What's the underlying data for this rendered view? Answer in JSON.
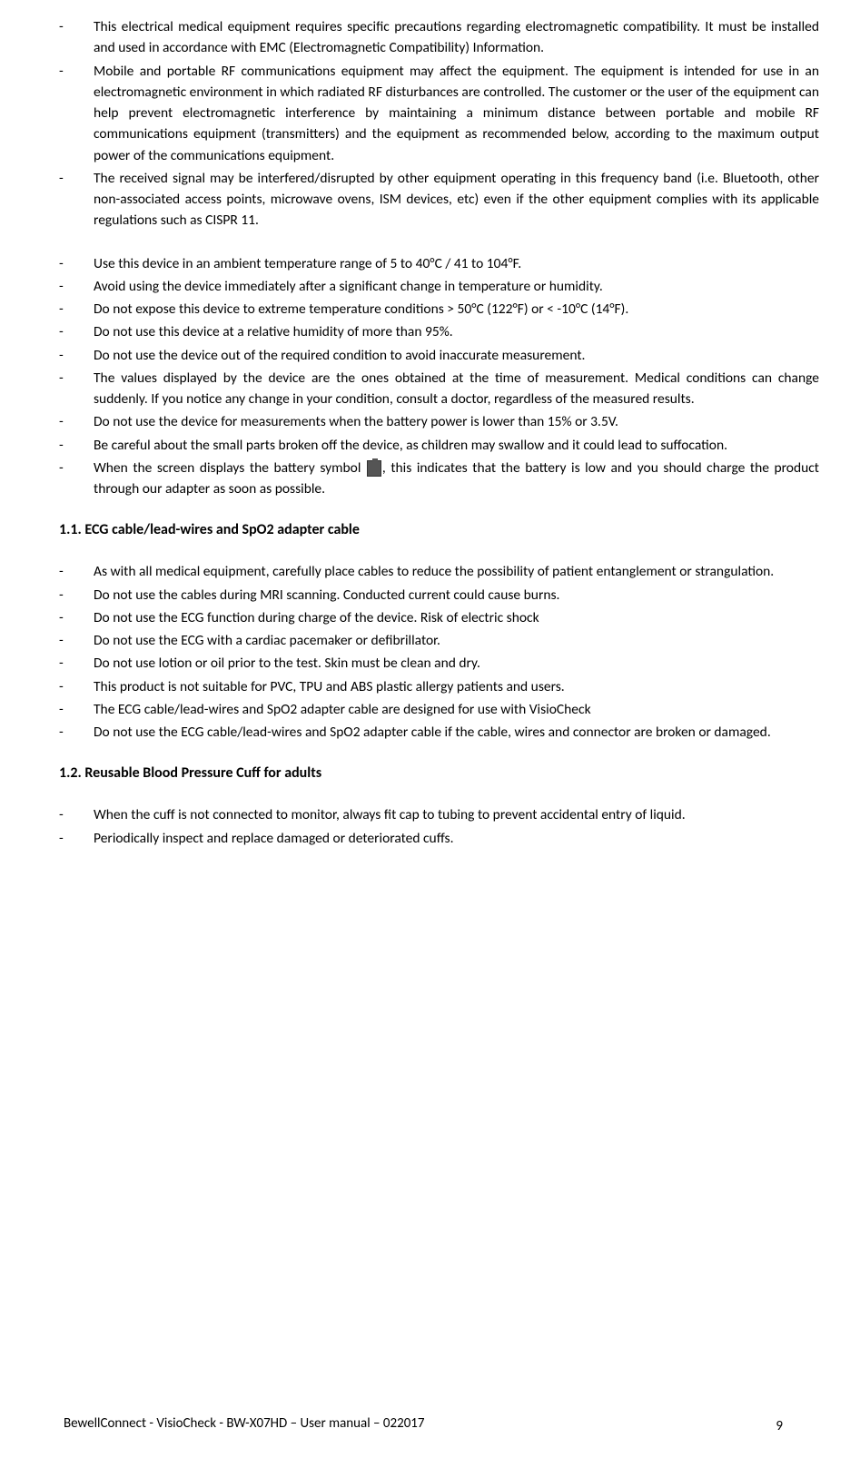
{
  "list1": [
    "This electrical medical equipment requires specific precautions regarding electromagnetic compatibility. It must be installed and used in accordance with EMC (Electromagnetic Compatibility) Information.",
    "Mobile and portable RF communications equipment may affect the equipment. The equipment is intended for use in an electromagnetic environment in which radiated RF disturbances are controlled. The customer or the user of the equipment can help prevent electromagnetic interference by maintaining a minimum distance between portable and mobile RF communications equipment (transmitters) and the equipment as recommended below, according to the maximum output power of the communications equipment.",
    "The received signal may be interfered/disrupted by other equipment operating in this frequency band (i.e. Bluetooth, other non-associated access points, microwave ovens, ISM devices, etc) even if the other equipment complies with its applicable regulations such as CISPR 11."
  ],
  "list2": [
    "Use this device in an ambient temperature range of 5 to 40°C / 41 to 104°F.",
    "Avoid using the device immediately after a significant change in temperature or humidity.",
    "Do not expose this device to extreme temperature conditions > 50°C (122°F) or < -10°C (14°F).",
    "Do not use this device at a relative humidity of more than 95%.",
    "Do not use the device out of the required condition to avoid inaccurate measurement.",
    "The values displayed by the device are the ones obtained at the time of measurement. Medical conditions can change suddenly. If you notice any change in your condition, consult a doctor, regardless of the measured results.",
    "Do not use the device for measurements when the battery power is lower than 15% or 3.5V.",
    "Be careful about the small parts broken off the device, as children may swallow and it could lead to suffocation."
  ],
  "batteryItemPre": "When the screen displays the battery symbol ",
  "batteryItemPost": ", this indicates that the battery is low and you should charge the product through our adapter as soon as possible.",
  "heading1": "1.1.  ECG cable/lead-wires and SpO2 adapter cable",
  "list3": [
    "As with all medical equipment, carefully place cables to reduce the possibility of patient entanglement or strangulation.",
    "Do not use the cables during MRI scanning. Conducted current could cause burns.",
    "Do not use the ECG function during charge of the device. Risk of electric shock",
    "Do not use the ECG with a cardiac pacemaker or defibrillator.",
    "Do not use lotion or oil prior to the test. Skin must be clean and dry.",
    "This product is not suitable for PVC, TPU and ABS plastic allergy patients and users.",
    "The ECG cable/lead-wires and SpO2 adapter cable are designed for use with VisioCheck",
    "Do not use the ECG cable/lead-wires and SpO2 adapter cable if the cable, wires and connector are broken or damaged."
  ],
  "heading2": "1.2.  Reusable Blood Pressure Cuff for adults",
  "list4": [
    "When the cuff is not connected to monitor, always fit cap to tubing to prevent accidental entry of liquid.",
    "Periodically inspect and replace damaged or deteriorated cuffs."
  ],
  "footer": "BewellConnect - VisioCheck - BW-X07HD – User manual – 022017",
  "pageNum": "9"
}
